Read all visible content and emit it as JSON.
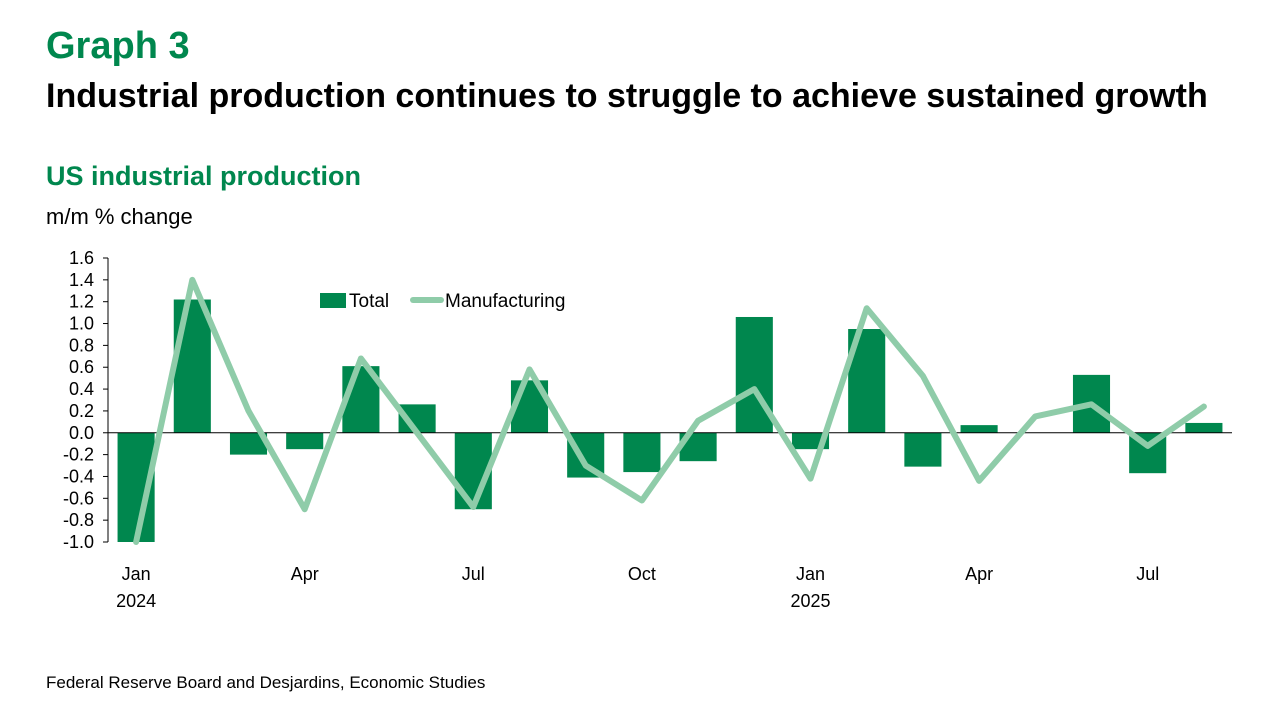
{
  "header": {
    "graph_label": "Graph 3",
    "headline": "Industrial production continues to struggle to achieve sustained growth",
    "chart_title": "US industrial production",
    "units": "m/m % change"
  },
  "source": "Federal Reserve Board and Desjardins, Economic Studies",
  "colors": {
    "total": "#00874e",
    "manufacturing": "#8fcca9",
    "title": "#00874e"
  },
  "chart_data": {
    "type": "bar",
    "title": "US industrial production",
    "ylabel": "m/m % change",
    "ylim": [
      -1.0,
      1.6
    ],
    "yticks": [
      "1.6",
      "1.4",
      "1.2",
      "1.0",
      "0.8",
      "0.6",
      "0.4",
      "0.2",
      "0.0",
      "-0.2",
      "-0.4",
      "-0.6",
      "-0.8",
      "-1.0"
    ],
    "categories": [
      "2024-01",
      "2024-02",
      "2024-03",
      "2024-04",
      "2024-05",
      "2024-06",
      "2024-07",
      "2024-08",
      "2024-09",
      "2024-10",
      "2024-11",
      "2024-12",
      "2025-01",
      "2025-02",
      "2025-03",
      "2025-04",
      "2025-05",
      "2025-06",
      "2025-07",
      "2025-08"
    ],
    "xtick_labels": [
      {
        "index": 0,
        "month": "Jan",
        "year": "2024"
      },
      {
        "index": 3,
        "month": "Apr",
        "year": ""
      },
      {
        "index": 6,
        "month": "Jul",
        "year": ""
      },
      {
        "index": 9,
        "month": "Oct",
        "year": ""
      },
      {
        "index": 12,
        "month": "Jan",
        "year": "2025"
      },
      {
        "index": 15,
        "month": "Apr",
        "year": ""
      },
      {
        "index": 18,
        "month": "Jul",
        "year": ""
      }
    ],
    "series": [
      {
        "name": "Total",
        "type": "bar",
        "values": [
          -1.0,
          1.22,
          -0.2,
          -0.15,
          0.61,
          0.26,
          -0.7,
          0.48,
          -0.41,
          -0.36,
          -0.26,
          1.06,
          -0.15,
          0.95,
          -0.31,
          0.07,
          0.0,
          0.53,
          -0.37,
          0.09
        ]
      },
      {
        "name": "Manufacturing",
        "type": "line",
        "values": [
          -1.0,
          1.4,
          0.2,
          -0.7,
          0.68,
          0.0,
          -0.68,
          0.58,
          -0.3,
          -0.62,
          0.11,
          0.4,
          -0.42,
          1.14,
          0.52,
          -0.44,
          0.15,
          0.26,
          -0.12,
          0.24
        ]
      }
    ],
    "legend_position": "top-center",
    "grid": false
  }
}
